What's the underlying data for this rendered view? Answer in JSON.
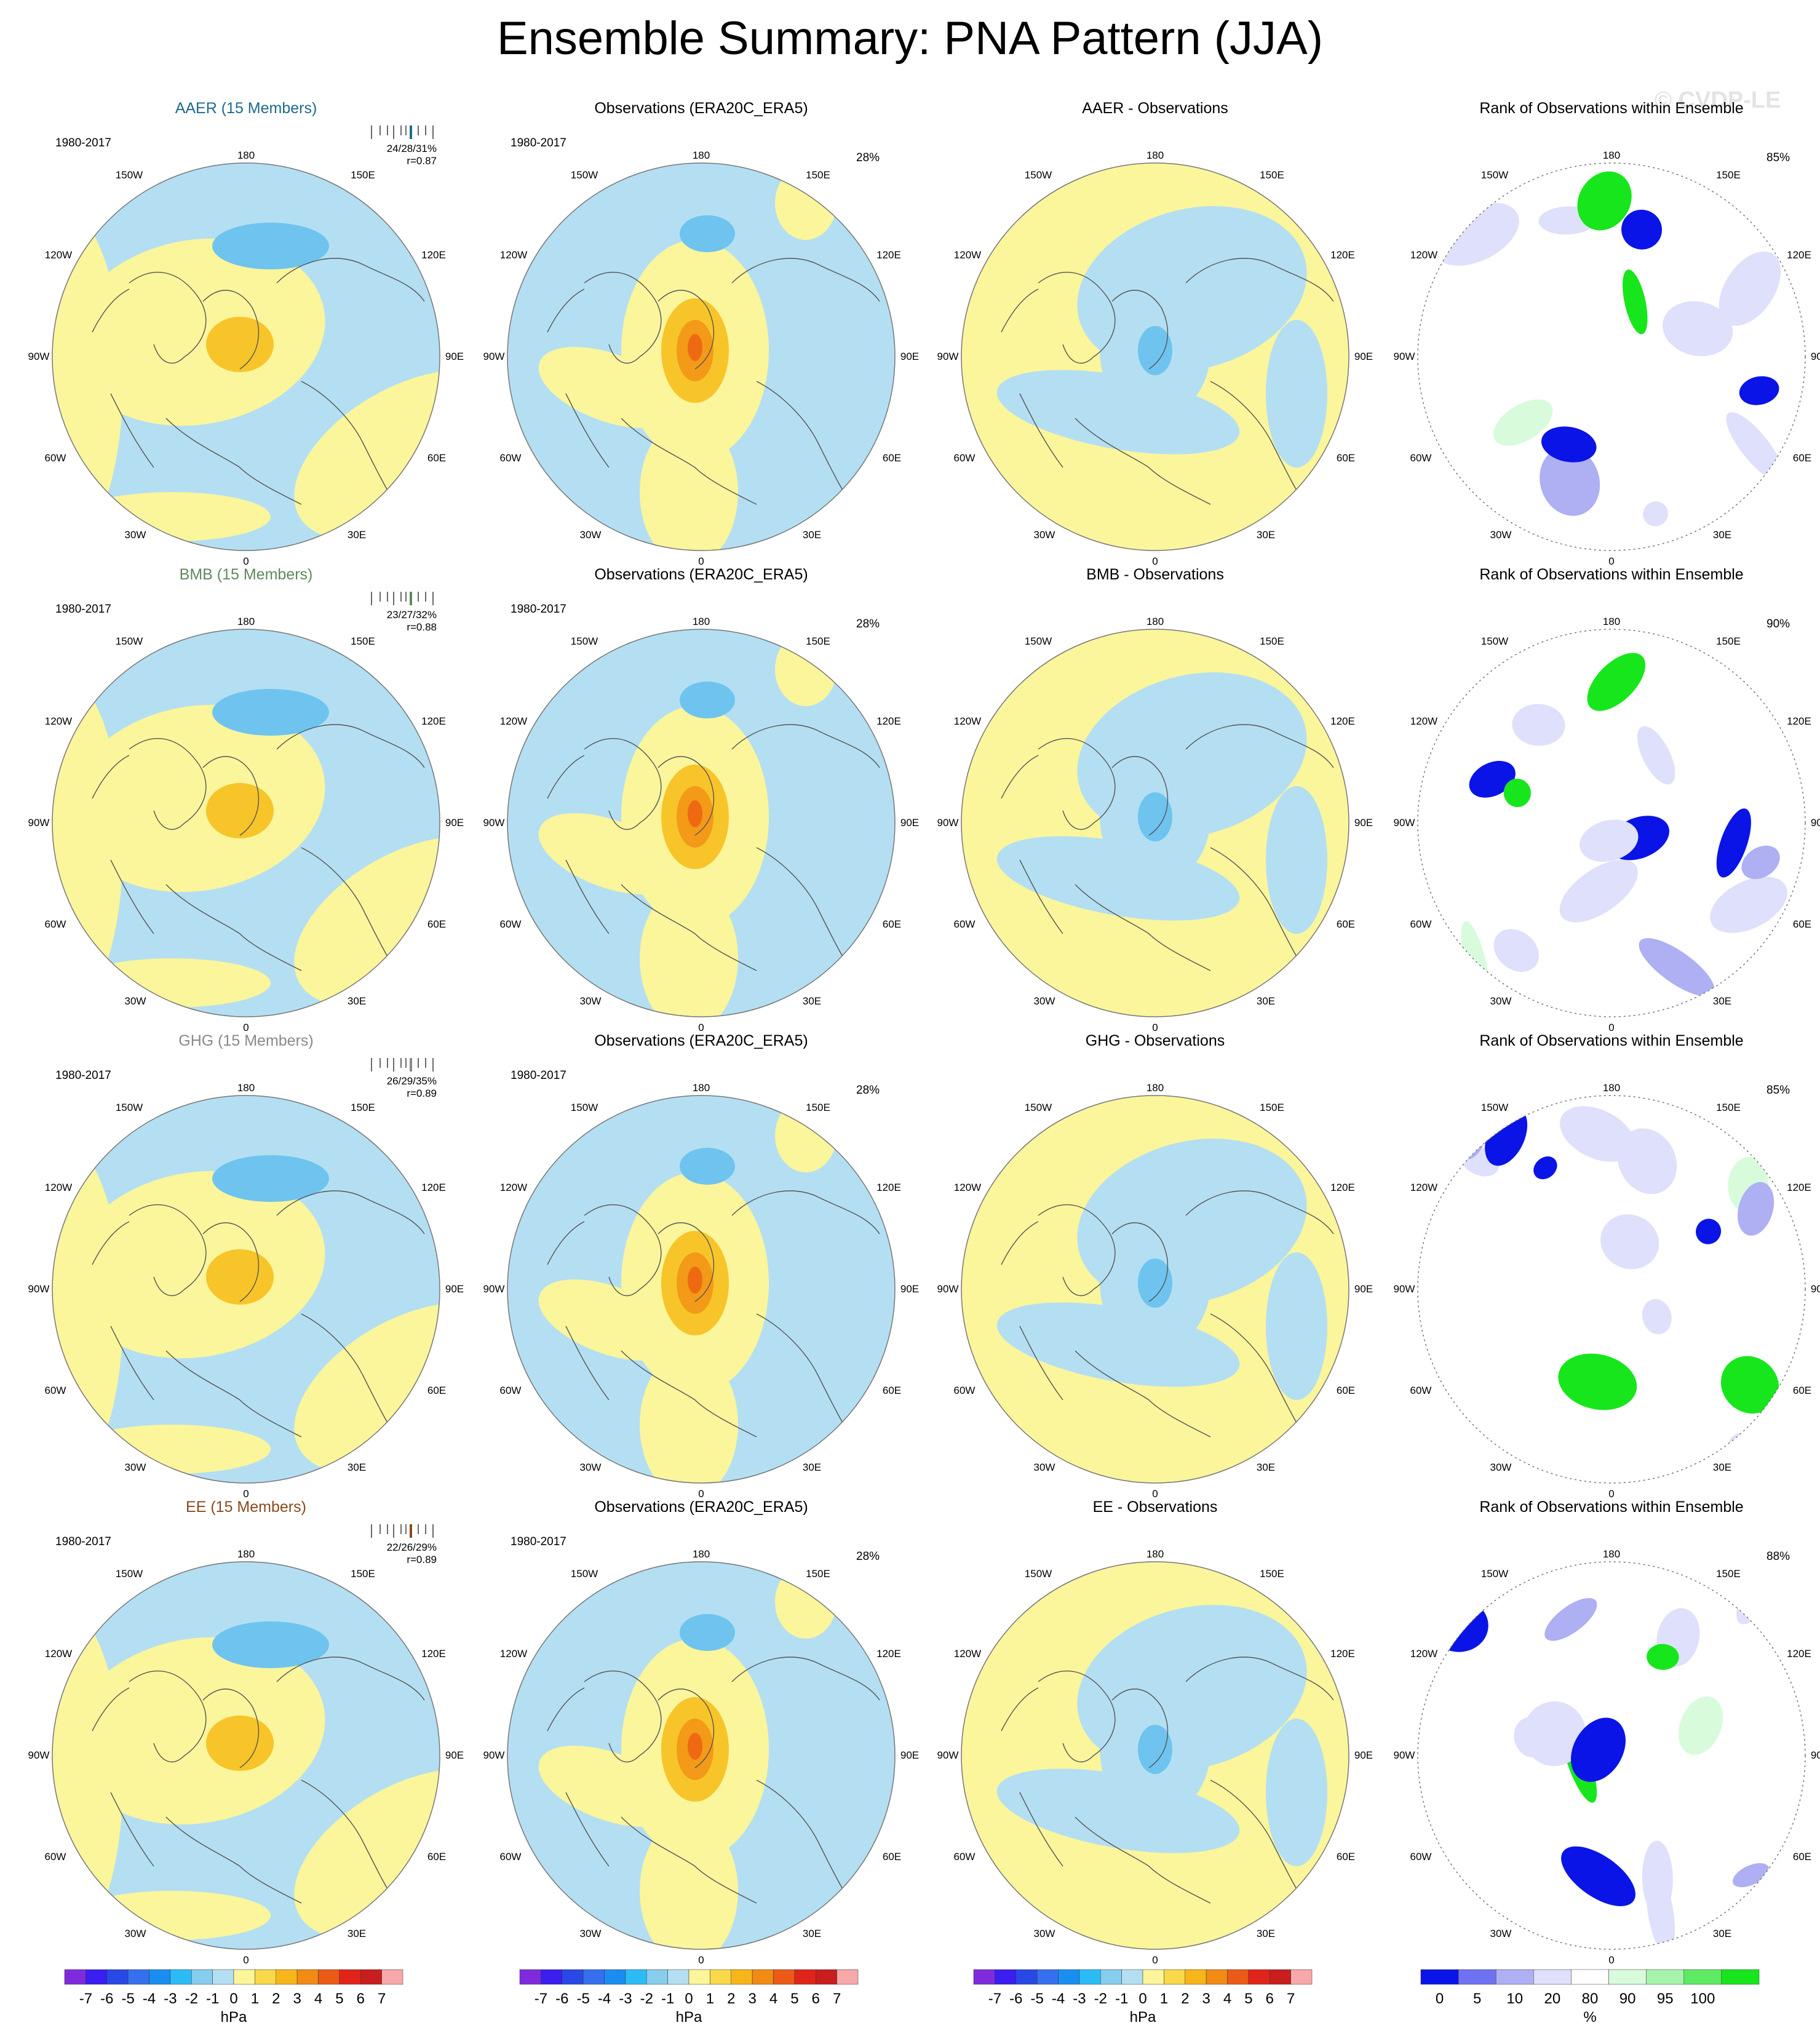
{
  "title": "Ensemble Summary: PNA Pattern (JJA)",
  "watermark": "© CVDP-LE",
  "period": "1980-2017",
  "lon_labels": {
    "n": "180",
    "s": "0",
    "w": "90W",
    "e": "90E",
    "nw1": "150W",
    "nw2": "120W",
    "sw1": "60W",
    "sw2": "30W",
    "ne1": "150E",
    "ne2": "120E",
    "se1": "60E",
    "se2": "30E"
  },
  "rows": [
    {
      "ensemble": {
        "title": "AAER (15 Members)",
        "color": "#1f6b8a",
        "stats": "24/28/31%",
        "r": "r=0.87"
      },
      "obs": {
        "title": "Observations (ERA20C_ERA5)",
        "pct": "28%"
      },
      "diff": {
        "title": "AAER - Observations"
      },
      "rank": {
        "title": "Rank of Observations within Ensemble",
        "pct": "85%"
      }
    },
    {
      "ensemble": {
        "title": "BMB (15 Members)",
        "color": "#5e8a5e",
        "stats": "23/27/32%",
        "r": "r=0.88"
      },
      "obs": {
        "title": "Observations (ERA20C_ERA5)",
        "pct": "28%"
      },
      "diff": {
        "title": "BMB - Observations"
      },
      "rank": {
        "title": "Rank of Observations within Ensemble",
        "pct": "90%"
      }
    },
    {
      "ensemble": {
        "title": "GHG (15 Members)",
        "color": "#8a8a8a",
        "stats": "26/29/35%",
        "r": "r=0.89"
      },
      "obs": {
        "title": "Observations (ERA20C_ERA5)",
        "pct": "28%"
      },
      "diff": {
        "title": "GHG - Observations"
      },
      "rank": {
        "title": "Rank of Observations within Ensemble",
        "pct": "85%"
      }
    },
    {
      "ensemble": {
        "title": "EE (15 Members)",
        "color": "#8a4a1e",
        "stats": "22/26/29%",
        "r": "r=0.89"
      },
      "obs": {
        "title": "Observations (ERA20C_ERA5)",
        "pct": "28%"
      },
      "diff": {
        "title": "EE - Observations"
      },
      "rank": {
        "title": "Rank of Observations within Ensemble",
        "pct": "88%"
      }
    }
  ],
  "hpa_colorbar": {
    "unit": "hPa",
    "ticks": [
      "-7",
      "-6",
      "-5",
      "-4",
      "-3",
      "-2",
      "-1",
      "0",
      "1",
      "2",
      "3",
      "4",
      "5",
      "6",
      "7"
    ],
    "colors": [
      "#7f2bdc",
      "#3b1ef0",
      "#2849e6",
      "#3670ee",
      "#1a8ef0",
      "#2bbcf5",
      "#86cdee",
      "#b4dff2",
      "#fdf59a",
      "#f9d84a",
      "#f6b519",
      "#f08b14",
      "#ec5a18",
      "#e0241a",
      "#c81e1e",
      "#f7a8a8"
    ]
  },
  "rank_colorbar": {
    "unit": "%",
    "ticks": [
      "0",
      "5",
      "10",
      "20",
      "80",
      "90",
      "95",
      "100"
    ],
    "colors": [
      "#0a14e6",
      "#6e72f2",
      "#aeb0f3",
      "#dfe0fb",
      "#ffffff",
      "#d8fbdc",
      "#a6f3ab",
      "#5fea63",
      "#18e61c"
    ]
  }
}
